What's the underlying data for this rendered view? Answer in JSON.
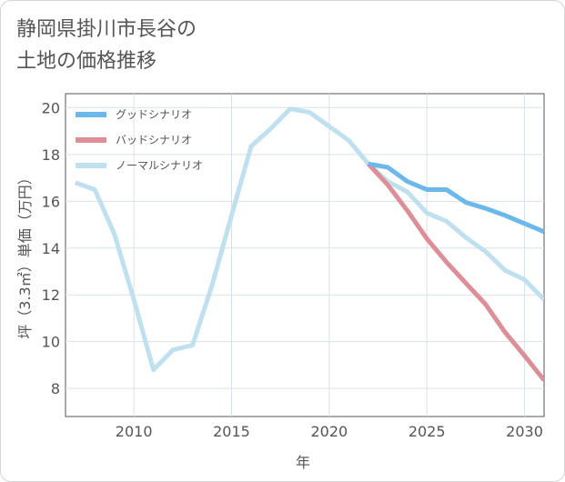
{
  "title_lines": [
    "静岡県掛川市長谷の",
    "土地の価格推移"
  ],
  "chart_data": {
    "type": "line",
    "xlabel": "年",
    "ylabel": "坪（3.3㎡）単価（万円）",
    "xlim": [
      2006.5,
      2031
    ],
    "ylim": [
      6.8,
      20.6
    ],
    "xticks": [
      2010,
      2015,
      2020,
      2025,
      2030
    ],
    "yticks": [
      8,
      10,
      12,
      14,
      16,
      18,
      20
    ],
    "grid": true,
    "legend_position": "top-left",
    "series": [
      {
        "name": "グッドシナリオ",
        "color": "#6bb8ed",
        "x": [
          2022,
          2023,
          2024,
          2025,
          2026,
          2027,
          2028,
          2029,
          2030,
          2031
        ],
        "y": [
          17.6,
          17.45,
          16.85,
          16.5,
          16.5,
          15.95,
          15.7,
          15.4,
          15.05,
          14.7
        ]
      },
      {
        "name": "バッドシナリオ",
        "color": "#dd8e96",
        "x": [
          2022,
          2023,
          2024,
          2025,
          2026,
          2027,
          2028,
          2029,
          2030,
          2031
        ],
        "y": [
          17.6,
          16.7,
          15.6,
          14.4,
          13.4,
          12.5,
          11.6,
          10.4,
          9.4,
          8.35
        ]
      },
      {
        "name": "ノーマルシナリオ",
        "color": "#bfe0ef",
        "x": [
          2007,
          2008,
          2009,
          2010,
          2011,
          2012,
          2013,
          2014,
          2015,
          2016,
          2017,
          2018,
          2019,
          2020,
          2021,
          2022,
          2023,
          2024,
          2025,
          2026,
          2027,
          2028,
          2029,
          2030,
          2031
        ],
        "y": [
          16.8,
          16.5,
          14.6,
          11.8,
          8.8,
          9.65,
          9.85,
          12.4,
          15.4,
          18.35,
          19.1,
          19.95,
          19.8,
          19.2,
          18.6,
          17.6,
          16.85,
          16.4,
          15.5,
          15.15,
          14.45,
          13.85,
          13.05,
          12.65,
          11.8
        ]
      }
    ]
  }
}
